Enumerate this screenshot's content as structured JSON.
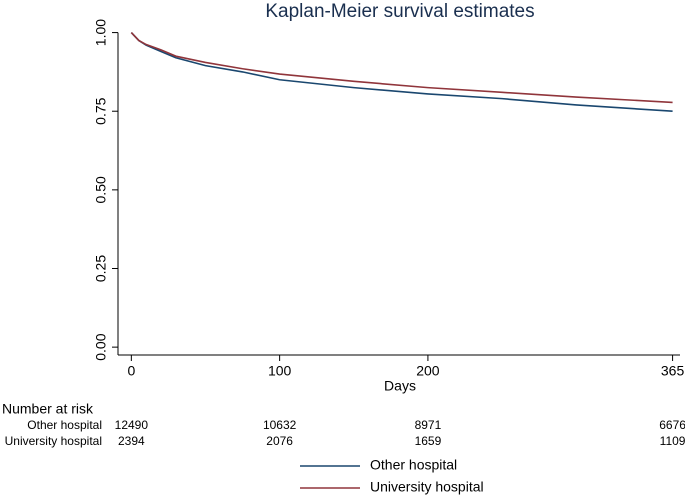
{
  "chart_data": {
    "type": "line",
    "title": "Kaplan-Meier survival estimates",
    "xlabel": "Days",
    "x": [
      0,
      5,
      10,
      20,
      30,
      50,
      75,
      100,
      150,
      200,
      250,
      300,
      365
    ],
    "series": [
      {
        "name": "Other hospital",
        "color": "#1a476f",
        "values": [
          1.0,
          0.975,
          0.96,
          0.94,
          0.92,
          0.895,
          0.875,
          0.85,
          0.825,
          0.805,
          0.79,
          0.77,
          0.75
        ]
      },
      {
        "name": "University hospital",
        "color": "#90353b",
        "values": [
          1.0,
          0.975,
          0.962,
          0.945,
          0.925,
          0.905,
          0.885,
          0.868,
          0.845,
          0.825,
          0.81,
          0.795,
          0.778
        ]
      }
    ],
    "xlim": [
      -9,
      370
    ],
    "xticks": [
      0,
      100,
      200,
      365
    ],
    "ylim": [
      -0.025,
      1.04
    ],
    "yticks": [
      {
        "value": 0,
        "label": "0.00"
      },
      {
        "value": 0.25,
        "label": "0.25"
      },
      {
        "value": 0.5,
        "label": "0.50"
      },
      {
        "value": 0.75,
        "label": "0.75"
      },
      {
        "value": 1,
        "label": "1.00"
      }
    ],
    "grid": false,
    "legend": "bottom",
    "risk_table": {
      "title": "Number at risk",
      "rows": [
        {
          "name": "Other hospital",
          "values": [
            12490,
            10632,
            8971,
            6676
          ]
        },
        {
          "name": "University hospital",
          "values": [
            2394,
            2076,
            1659,
            1109
          ]
        }
      ]
    }
  }
}
